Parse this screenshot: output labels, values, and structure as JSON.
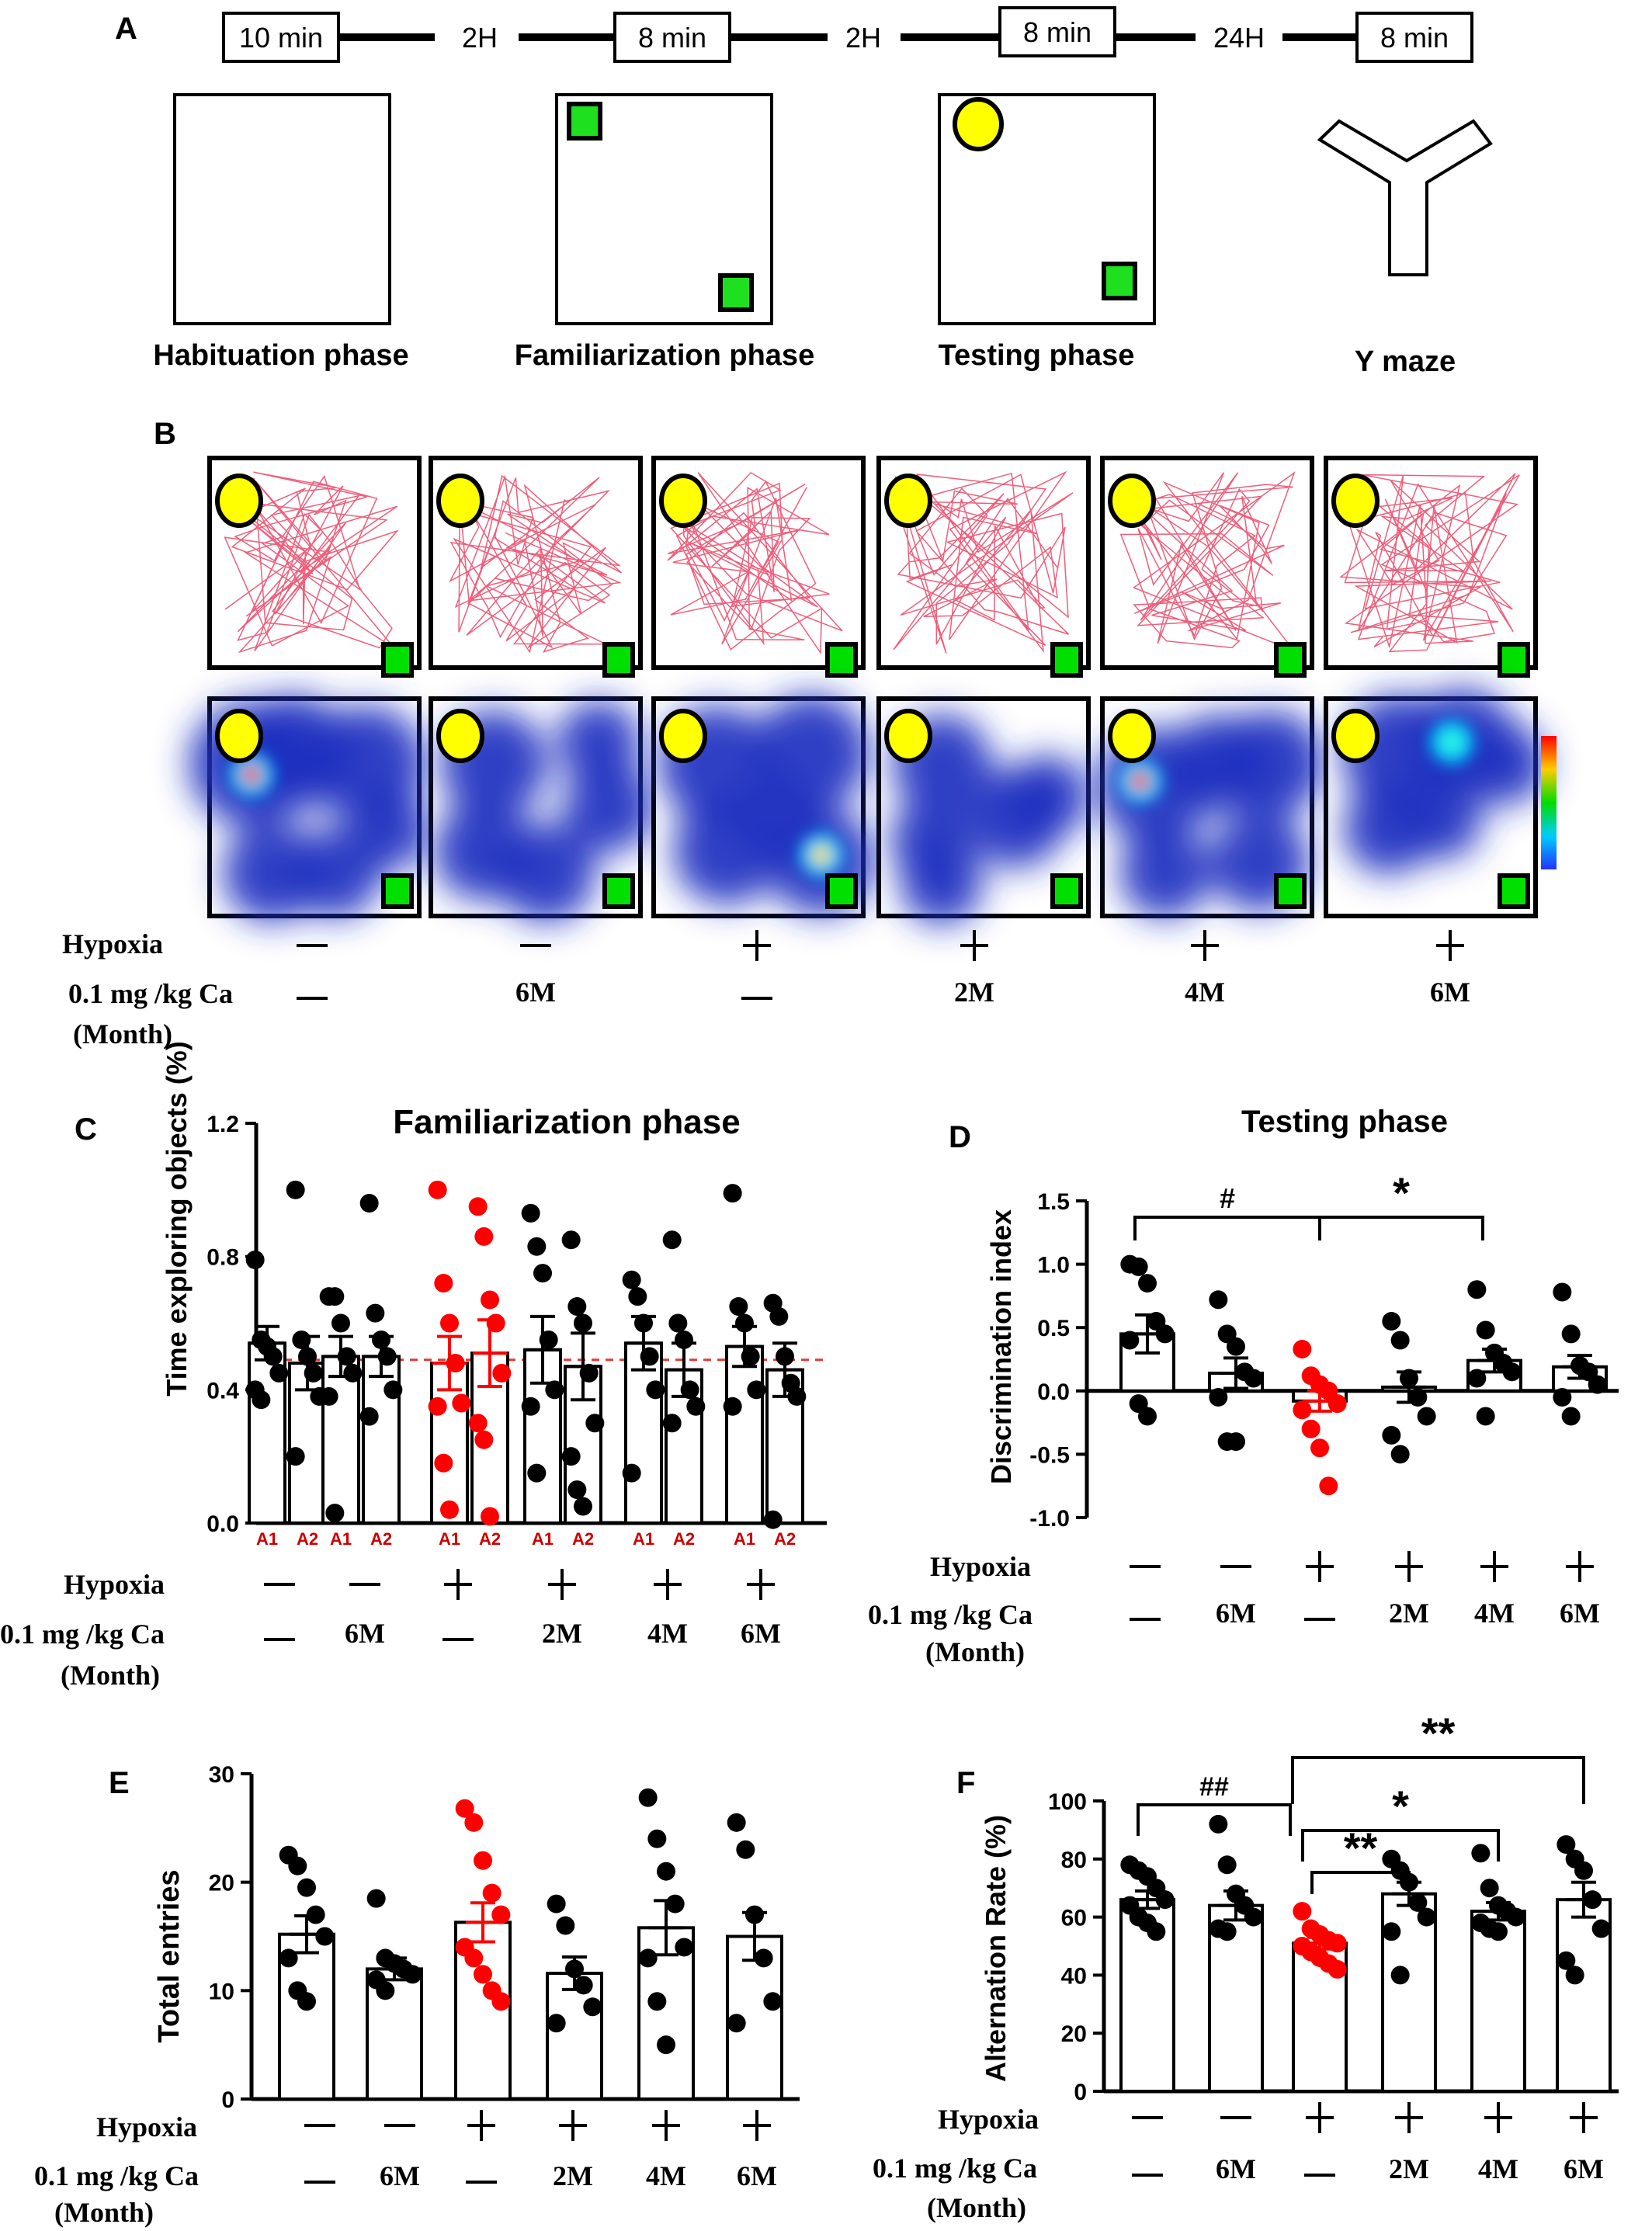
{
  "panel_letters": {
    "A": "A",
    "B": "B",
    "C": "C",
    "D": "D",
    "E": "E",
    "F": "F"
  },
  "timeline": {
    "segments": [
      "10 min",
      "8 min",
      "8 min",
      "8 min"
    ],
    "gaps": [
      "2H",
      "2H",
      "24H"
    ]
  },
  "phases": [
    "Habituation phase",
    "Familiarization phase",
    "Testing phase",
    "Y maze"
  ],
  "row_labels": {
    "hypoxia": "Hypoxia",
    "dose": "0.1 mg /kg Ca",
    "month": "(Month)"
  },
  "groups": [
    {
      "hypoxia": "minus",
      "dose": "—"
    },
    {
      "hypoxia": "minus",
      "dose": "6M"
    },
    {
      "hypoxia": "plus",
      "dose": "—"
    },
    {
      "hypoxia": "plus",
      "dose": "2M"
    },
    {
      "hypoxia": "plus",
      "dose": "4M"
    },
    {
      "hypoxia": "plus",
      "dose": "6M"
    }
  ],
  "colors": {
    "highlight": "#ff0000",
    "point": "#000000",
    "novel_object": "#ffff00",
    "familiar_object": "#00e000",
    "track": "#e8375a",
    "heat_low": "#1b2fc0",
    "reference_line": "#e53935"
  },
  "chart_data": [
    {
      "panel": "C",
      "type": "bar",
      "title": "Familiarization phase",
      "ylabel": "Time exploring objects (%)",
      "ylim": [
        0,
        1.2
      ],
      "yticks": [
        "0.0",
        "0.4",
        "0.8",
        "1.2"
      ],
      "object_labels": [
        "A1",
        "A2"
      ],
      "reference_line": 0.49,
      "series": [
        {
          "group": 0,
          "object": "A1",
          "mean": 0.54,
          "sem": 0.05,
          "points": [
            0.79,
            0.55,
            0.53,
            0.5,
            0.45,
            0.4,
            0.37
          ]
        },
        {
          "group": 0,
          "object": "A2",
          "mean": 0.48,
          "sem": 0.08,
          "points": [
            1.0,
            0.55,
            0.5,
            0.45,
            0.38,
            0.2
          ]
        },
        {
          "group": 1,
          "object": "A1",
          "mean": 0.5,
          "sem": 0.06,
          "points": [
            0.68,
            0.68,
            0.6,
            0.5,
            0.45,
            0.38,
            0.03
          ]
        },
        {
          "group": 1,
          "object": "A2",
          "mean": 0.5,
          "sem": 0.06,
          "points": [
            0.96,
            0.63,
            0.55,
            0.5,
            0.4,
            0.32
          ]
        },
        {
          "group": 2,
          "object": "A1",
          "mean": 0.48,
          "sem": 0.08,
          "points": [
            1.0,
            0.72,
            0.6,
            0.48,
            0.36,
            0.35,
            0.18,
            0.04
          ]
        },
        {
          "group": 2,
          "object": "A2",
          "mean": 0.51,
          "sem": 0.1,
          "points": [
            0.95,
            0.86,
            0.67,
            0.6,
            0.45,
            0.3,
            0.25,
            0.02
          ]
        },
        {
          "group": 3,
          "object": "A1",
          "mean": 0.52,
          "sem": 0.1,
          "points": [
            0.93,
            0.83,
            0.75,
            0.55,
            0.4,
            0.35,
            0.15
          ]
        },
        {
          "group": 3,
          "object": "A2",
          "mean": 0.47,
          "sem": 0.1,
          "points": [
            0.85,
            0.65,
            0.6,
            0.45,
            0.3,
            0.2,
            0.1,
            0.05
          ]
        },
        {
          "group": 4,
          "object": "A1",
          "mean": 0.54,
          "sem": 0.08,
          "points": [
            0.73,
            0.68,
            0.6,
            0.5,
            0.4,
            0.15
          ]
        },
        {
          "group": 4,
          "object": "A2",
          "mean": 0.46,
          "sem": 0.08,
          "points": [
            0.85,
            0.6,
            0.55,
            0.4,
            0.35,
            0.3
          ]
        },
        {
          "group": 5,
          "object": "A1",
          "mean": 0.53,
          "sem": 0.06,
          "points": [
            0.99,
            0.65,
            0.6,
            0.5,
            0.4,
            0.35
          ]
        },
        {
          "group": 5,
          "object": "A2",
          "mean": 0.46,
          "sem": 0.08,
          "points": [
            0.66,
            0.62,
            0.5,
            0.42,
            0.38,
            0.01
          ]
        }
      ]
    },
    {
      "panel": "D",
      "type": "bar",
      "title": "Testing phase",
      "ylabel": "Discrimination index",
      "ylim": [
        -1.0,
        1.5
      ],
      "yticks": [
        "-1.0",
        "-0.5",
        "0.0",
        "0.5",
        "1.0",
        "1.5"
      ],
      "means": [
        0.45,
        0.14,
        -0.08,
        0.03,
        0.24,
        0.19
      ],
      "sems": [
        0.15,
        0.12,
        0.08,
        0.12,
        0.09,
        0.09
      ],
      "points": [
        [
          1.0,
          0.98,
          0.85,
          0.55,
          0.45,
          0.4,
          -0.1,
          -0.2
        ],
        [
          0.72,
          0.45,
          0.35,
          0.15,
          0.1,
          -0.05,
          -0.4,
          -0.4
        ],
        [
          0.33,
          0.12,
          0.05,
          0.0,
          -0.1,
          -0.15,
          -0.3,
          -0.45,
          -0.75
        ],
        [
          0.55,
          0.4,
          0.1,
          -0.05,
          -0.2,
          -0.35,
          -0.5
        ],
        [
          0.8,
          0.48,
          0.3,
          0.22,
          0.15,
          0.1,
          -0.2
        ],
        [
          0.78,
          0.45,
          0.2,
          0.15,
          0.05,
          -0.05,
          -0.2
        ]
      ],
      "annotations": [
        "#",
        "*"
      ]
    },
    {
      "panel": "E",
      "type": "bar",
      "ylabel": "Total entries",
      "ylim": [
        0,
        30
      ],
      "yticks": [
        "0",
        "10",
        "20",
        "30"
      ],
      "means": [
        15.2,
        12.0,
        16.3,
        11.6,
        15.8,
        15.0
      ],
      "sems": [
        1.7,
        1.0,
        1.8,
        1.5,
        2.5,
        2.2
      ],
      "points": [
        [
          22.5,
          21.5,
          19.5,
          17,
          15,
          13,
          10,
          9
        ],
        [
          18.5,
          13,
          12.5,
          12,
          11.5,
          11,
          10
        ],
        [
          26.8,
          25.5,
          22,
          19,
          17,
          14,
          13,
          11.5,
          10,
          9
        ],
        [
          18,
          16,
          12,
          10.5,
          8.5,
          7
        ],
        [
          27.8,
          24,
          21,
          18,
          14,
          13,
          9,
          5
        ],
        [
          25.5,
          23,
          17,
          13,
          9,
          7
        ]
      ]
    },
    {
      "panel": "F",
      "type": "bar",
      "ylabel": "Alternation Rate (%)",
      "ylim": [
        0,
        100
      ],
      "yticks": [
        "0",
        "20",
        "40",
        "60",
        "80",
        "100"
      ],
      "means": [
        66,
        64,
        51,
        68,
        62,
        66
      ],
      "sems": [
        3,
        5,
        2,
        4,
        3,
        6
      ],
      "points": [
        [
          78,
          76,
          74,
          70,
          66,
          64,
          60,
          58,
          55
        ],
        [
          92,
          78,
          68,
          64,
          60,
          56,
          55
        ],
        [
          62,
          56,
          54,
          52,
          51,
          50,
          48,
          46,
          44,
          42
        ],
        [
          80,
          76,
          72,
          65,
          60,
          55,
          40
        ],
        [
          82,
          70,
          64,
          62,
          60,
          58,
          56,
          55
        ],
        [
          85,
          80,
          76,
          66,
          56,
          45,
          40
        ]
      ],
      "annotations": [
        "##",
        "**",
        "*",
        "**"
      ]
    }
  ]
}
